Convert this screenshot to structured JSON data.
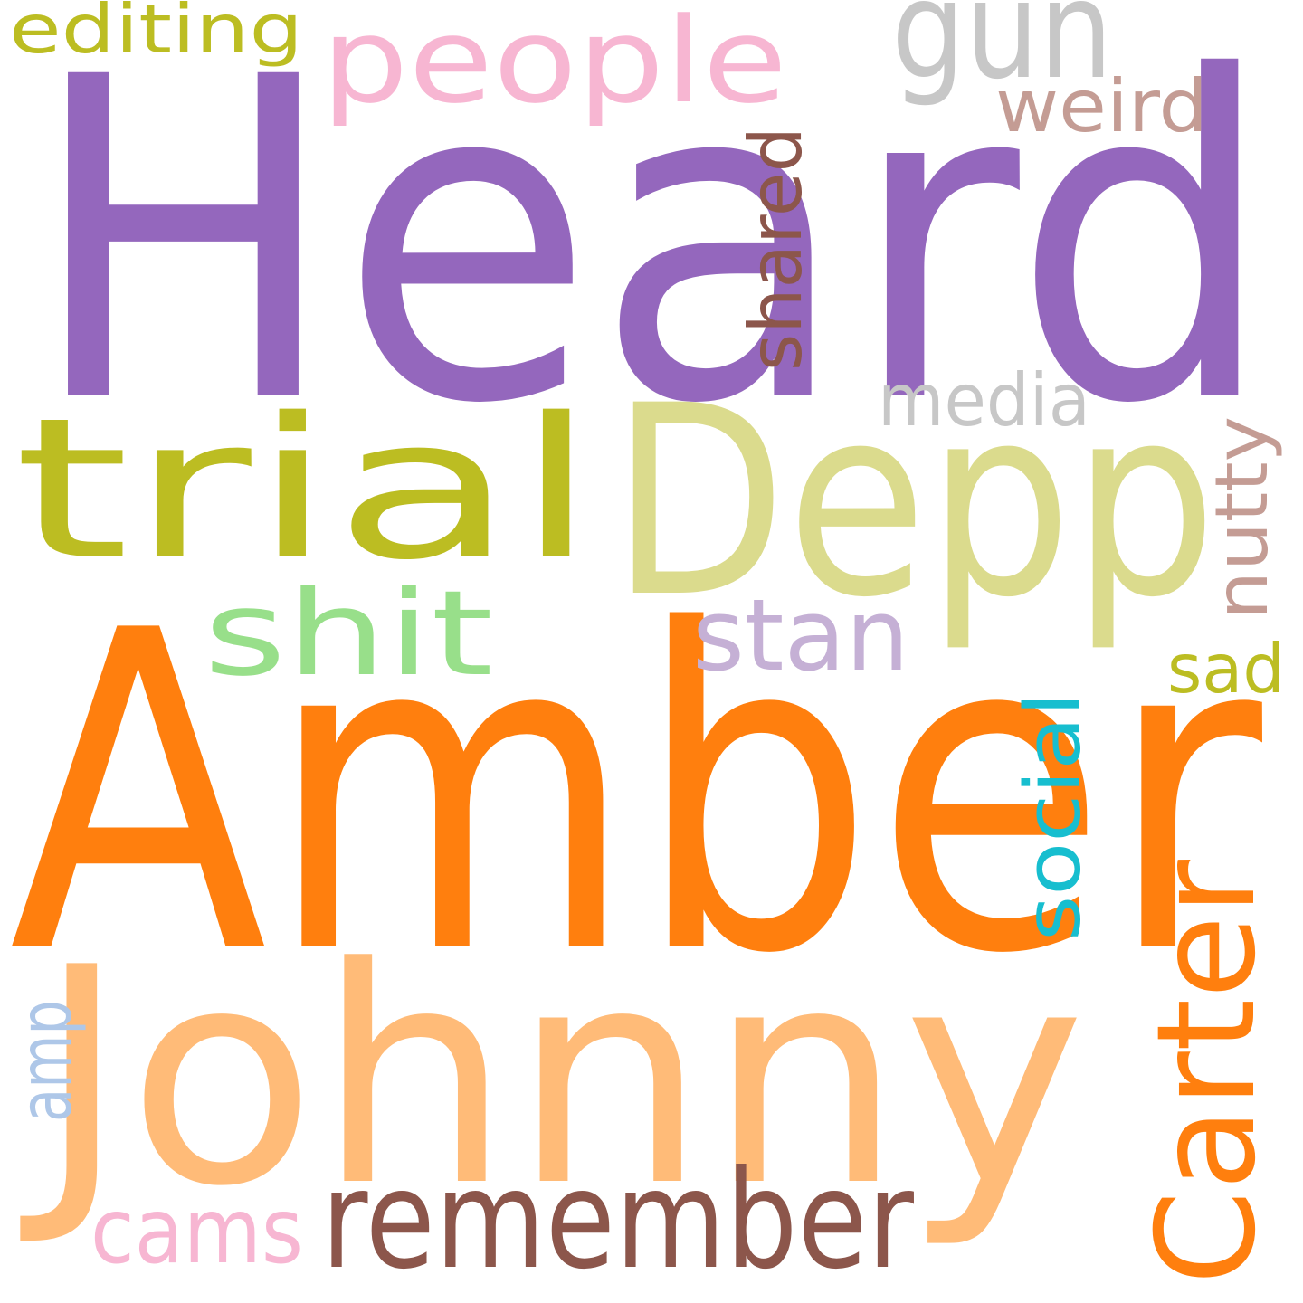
{
  "words": [
    "Heard",
    "Amber",
    "Johnny",
    "Depp",
    "trial",
    "people",
    "gun",
    "editing",
    "weird",
    "shared",
    "media",
    "nutty",
    "shit",
    "stan",
    "sad",
    "social",
    "Carter",
    "amp",
    "cams",
    "remember"
  ]
}
